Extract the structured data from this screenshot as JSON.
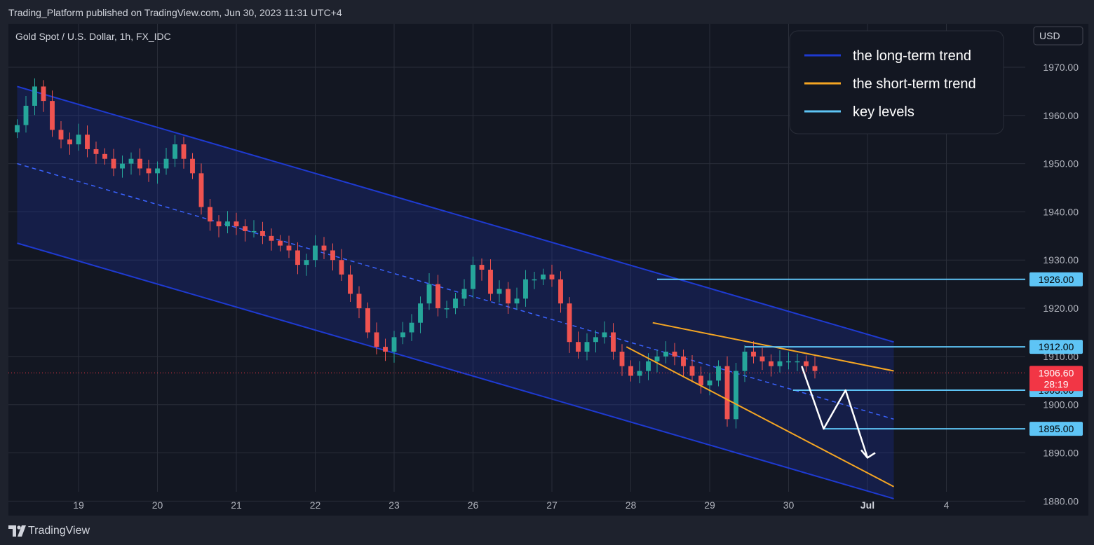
{
  "header": {
    "published_text": "Trading_Platform published on TradingView.com, Jun 30, 2023 11:31 UTC+4"
  },
  "footer": {
    "brand": "TradingView",
    "logo_icon": "tradingview-logo-icon"
  },
  "chart": {
    "symbol_label": "Gold Spot / U.S. Dollar, 1h, FX_IDC",
    "currency": "USD",
    "colors": {
      "background": "#131722",
      "grid": "#2a2e39",
      "up": "#26a69a",
      "down": "#ef5350",
      "channel": "#1e3ad1",
      "wedge": "#f5a623",
      "key": "#5ec4f5",
      "arrow": "#ffffff",
      "current_price": "#f23645"
    },
    "legend": [
      {
        "label": "the long-term trend",
        "color": "#1e3ad1"
      },
      {
        "label": "the short-term trend",
        "color": "#f5a623"
      },
      {
        "label": "key levels",
        "color": "#5ec4f5"
      }
    ]
  },
  "chart_data": {
    "type": "candlestick",
    "title": "Gold Spot / U.S. Dollar, 1h, FX_IDC",
    "x_ticks": [
      {
        "label": "19",
        "idx": 7
      },
      {
        "label": "20",
        "idx": 16
      },
      {
        "label": "21",
        "idx": 25
      },
      {
        "label": "22",
        "idx": 34
      },
      {
        "label": "23",
        "idx": 43
      },
      {
        "label": "26",
        "idx": 52
      },
      {
        "label": "27",
        "idx": 61
      },
      {
        "label": "28",
        "idx": 70
      },
      {
        "label": "29",
        "idx": 79
      },
      {
        "label": "30",
        "idx": 88
      },
      {
        "label": "Jul",
        "idx": 97
      },
      {
        "label": "4",
        "idx": 106
      }
    ],
    "y_ticks": [
      1880,
      1890,
      1900,
      1910,
      1920,
      1930,
      1940,
      1950,
      1960,
      1970
    ],
    "ylim": [
      1877,
      1979
    ],
    "xlim": [
      -1,
      115
    ],
    "close_series": [
      1958,
      1962,
      1966,
      1963,
      1957,
      1955,
      1954,
      1956,
      1953,
      1952,
      1951,
      1949,
      1950,
      1951,
      1949,
      1948,
      1949,
      1951,
      1954,
      1951,
      1948,
      1941,
      1938,
      1937,
      1938,
      1937,
      1936,
      1936,
      1935,
      1934,
      1933,
      1932,
      1929,
      1930,
      1933,
      1932,
      1930,
      1927,
      1923,
      1920,
      1915,
      1912,
      1911,
      1914,
      1915,
      1917,
      1921,
      1925,
      1920,
      1920,
      1922,
      1924,
      1929,
      1928,
      1923,
      1924,
      1921,
      1922,
      1926,
      1926,
      1927,
      1926,
      1921,
      1913,
      1911,
      1913,
      1914,
      1915,
      1911,
      1908,
      1906,
      1907,
      1909,
      1910,
      1911,
      1910,
      1908,
      1906,
      1904,
      1905,
      1908,
      1897,
      1907,
      1911,
      1910,
      1909,
      1908,
      1909,
      1909,
      1909,
      1908,
      1907
    ],
    "current_price": "1906.60",
    "countdown": "28:19",
    "key_levels": [
      {
        "label": "1926.00",
        "value": 1926
      },
      {
        "label": "1912.00",
        "value": 1912
      },
      {
        "label": "1903.00",
        "value": 1903
      },
      {
        "label": "1895.00",
        "value": 1895
      }
    ],
    "channel": {
      "upper": [
        [
          0,
          1966
        ],
        [
          100,
          1913
        ]
      ],
      "mid": [
        [
          0,
          1950
        ],
        [
          100,
          1897
        ]
      ],
      "lower": [
        [
          0,
          1933.5
        ],
        [
          100,
          1880.5
        ]
      ]
    },
    "wedge": {
      "upper": [
        [
          72.5,
          1917
        ],
        [
          100,
          1907
        ]
      ],
      "lower": [
        [
          69.5,
          1912
        ],
        [
          100,
          1883
        ]
      ]
    },
    "projection_arrow": [
      [
        89.5,
        1908
      ],
      [
        92,
        1895
      ],
      [
        94.5,
        1903
      ],
      [
        97,
        1889
      ]
    ]
  }
}
